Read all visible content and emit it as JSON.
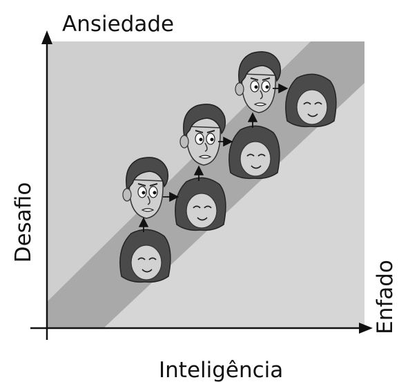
{
  "labels": {
    "top": "Ansiedade",
    "left": "Desafio",
    "right": "Enfado",
    "bottom": "Inteligência"
  }
}
